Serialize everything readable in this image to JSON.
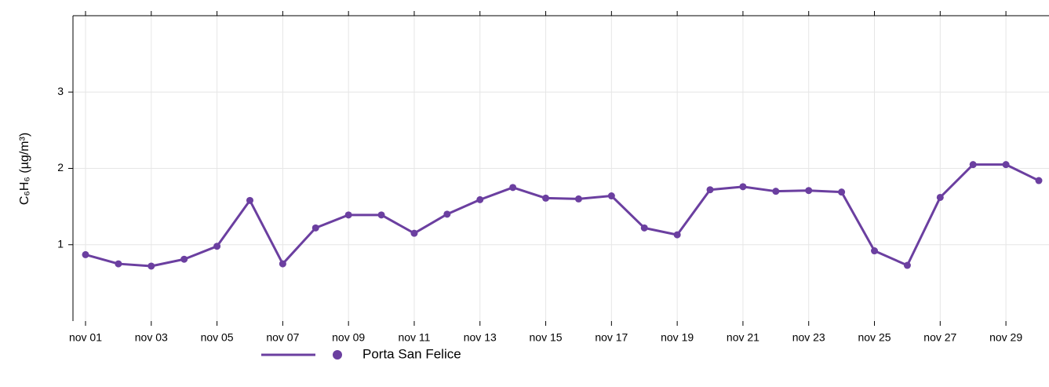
{
  "chart_data": {
    "type": "line",
    "y_label": "C₆H₆ (µg/m³)",
    "categories": [
      "nov 01",
      null,
      "nov 03",
      null,
      "nov 05",
      null,
      "nov 07",
      null,
      "nov 09",
      null,
      "nov 11",
      null,
      "nov 13",
      null,
      "nov 15",
      null,
      "nov 17",
      null,
      "nov 19",
      null,
      "nov 21",
      null,
      "nov 23",
      null,
      "nov 25",
      null,
      "nov 27",
      null,
      "nov 29",
      null
    ],
    "series": [
      {
        "name": "Porta San Felice",
        "color": "#6b3fa0",
        "values": [
          0.87,
          0.75,
          0.72,
          0.81,
          0.98,
          1.58,
          0.75,
          1.22,
          1.39,
          1.39,
          1.15,
          1.4,
          1.59,
          1.75,
          1.61,
          1.6,
          1.64,
          1.22,
          1.13,
          1.72,
          1.76,
          1.7,
          1.71,
          1.69,
          0.92,
          0.73,
          1.62,
          2.05,
          2.05,
          1.84
        ]
      }
    ],
    "ylim": [
      0,
      4
    ],
    "yticks": [
      1,
      2,
      3
    ],
    "grid": true
  }
}
